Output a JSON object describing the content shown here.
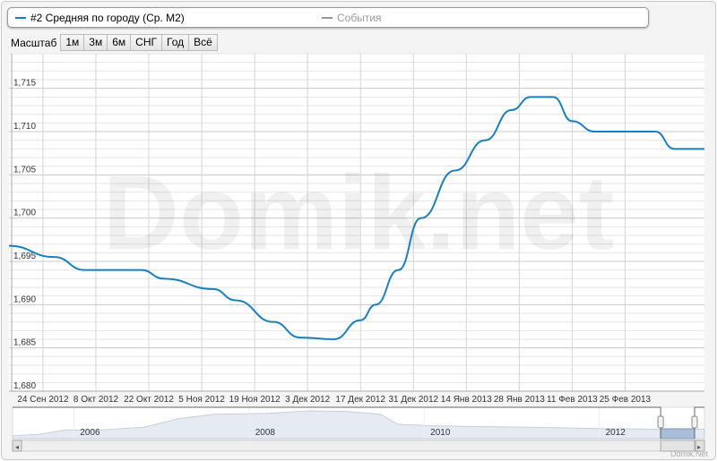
{
  "legend": {
    "series_label": "#2 Средняя по городу (Ср. М2)",
    "series_color": "#1a7fc1",
    "events_label": "События",
    "events_color": "#999999"
  },
  "zoom": {
    "label": "Масштаб",
    "buttons": [
      "1м",
      "3м",
      "6м",
      "СНГ",
      "Год",
      "Всё"
    ]
  },
  "watermark": "Domik.net",
  "credit": "Domik.Net",
  "chart_data": {
    "type": "line",
    "title": "",
    "xlabel": "",
    "ylabel": "",
    "ylim": [
      1.68,
      1.719
    ],
    "xlim": [
      "2012-09-15",
      "2013-03-18"
    ],
    "grid": true,
    "y_ticks": [
      "1,680",
      "1,685",
      "1,690",
      "1,695",
      "1,700",
      "1,705",
      "1,710",
      "1,715"
    ],
    "x_ticks": [
      {
        "date": "2012-09-24",
        "label": "24 Сен 2012"
      },
      {
        "date": "2012-10-08",
        "label": "8 Окт 2012"
      },
      {
        "date": "2012-10-22",
        "label": "22 Окт 2012"
      },
      {
        "date": "2012-11-05",
        "label": "5 Ноя 2012"
      },
      {
        "date": "2012-11-19",
        "label": "19 Ноя 2012"
      },
      {
        "date": "2012-12-03",
        "label": "3 Дек 2012"
      },
      {
        "date": "2012-12-17",
        "label": "17 Дек 2012"
      },
      {
        "date": "2012-12-31",
        "label": "31 Дек 2012"
      },
      {
        "date": "2013-01-14",
        "label": "14 Янв 2013"
      },
      {
        "date": "2013-01-28",
        "label": "28 Янв 2013"
      },
      {
        "date": "2013-02-11",
        "label": "11 Фев 2013"
      },
      {
        "date": "2013-02-25",
        "label": "25 Фев 2013"
      }
    ],
    "series": [
      {
        "name": "#2 Средняя по городу (Ср. М2)",
        "points": [
          [
            "2012-09-15",
            1.6968
          ],
          [
            "2012-09-27",
            1.6955
          ],
          [
            "2012-10-05",
            1.694
          ],
          [
            "2012-10-20",
            1.694
          ],
          [
            "2012-10-26",
            1.693
          ],
          [
            "2012-11-08",
            1.6918
          ],
          [
            "2012-11-14",
            1.6905
          ],
          [
            "2012-11-24",
            1.688
          ],
          [
            "2012-12-01",
            1.6862
          ],
          [
            "2012-12-10",
            1.686
          ],
          [
            "2012-12-17",
            1.6882
          ],
          [
            "2012-12-21",
            1.69
          ],
          [
            "2012-12-27",
            1.694
          ],
          [
            "2013-01-02",
            1.7
          ],
          [
            "2013-01-11",
            1.7055
          ],
          [
            "2013-01-19",
            1.709
          ],
          [
            "2013-01-26",
            1.7125
          ],
          [
            "2013-01-31",
            1.714
          ],
          [
            "2013-02-06",
            1.714
          ],
          [
            "2013-02-11",
            1.7112
          ],
          [
            "2013-02-17",
            1.71
          ],
          [
            "2013-03-05",
            1.71
          ],
          [
            "2013-03-10",
            1.708
          ],
          [
            "2013-03-18",
            1.708
          ]
        ]
      }
    ],
    "navigator": {
      "year_labels": [
        "2006",
        "2008",
        "2010",
        "2012"
      ],
      "years": [
        2006,
        2008,
        2010,
        2012
      ],
      "range": [
        2005.3,
        2013.2
      ],
      "selected": [
        2012.7,
        2013.2
      ],
      "points": [
        [
          2005.3,
          0.1
        ],
        [
          2005.6,
          0.15
        ],
        [
          2005.9,
          0.3
        ],
        [
          2006.3,
          0.3
        ],
        [
          2006.8,
          0.4
        ],
        [
          2007.2,
          0.7
        ],
        [
          2007.6,
          0.85
        ],
        [
          2008.2,
          0.88
        ],
        [
          2008.7,
          0.97
        ],
        [
          2009.1,
          0.95
        ],
        [
          2009.5,
          0.85
        ],
        [
          2009.7,
          0.5
        ],
        [
          2010.1,
          0.45
        ],
        [
          2010.6,
          0.42
        ],
        [
          2011.2,
          0.4
        ],
        [
          2012.0,
          0.35
        ],
        [
          2012.7,
          0.33
        ],
        [
          2013.2,
          0.33
        ]
      ]
    }
  }
}
